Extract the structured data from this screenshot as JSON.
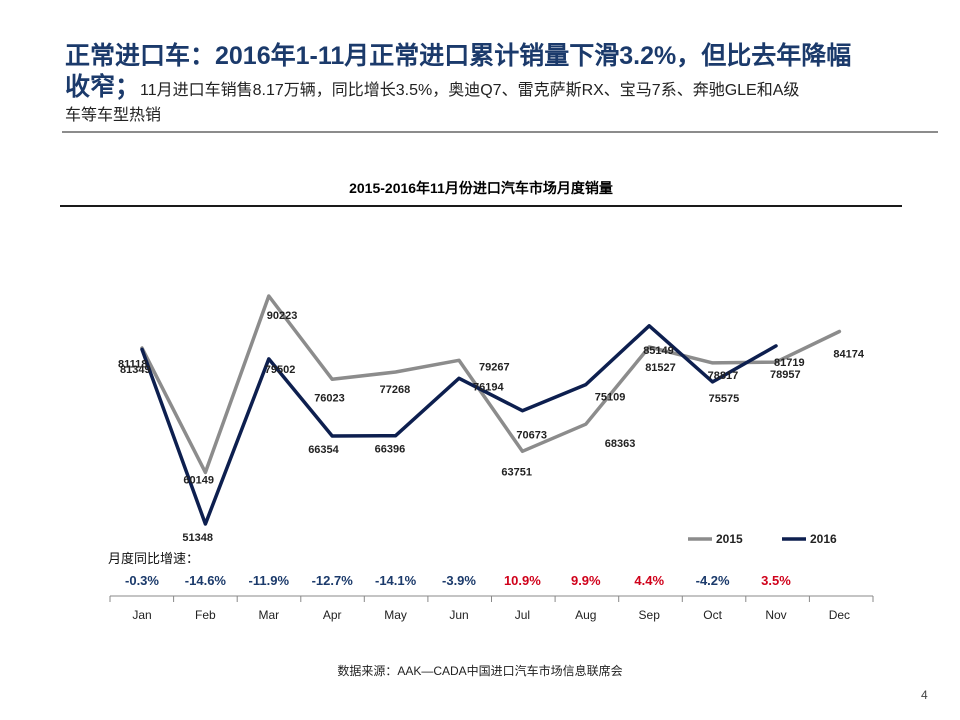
{
  "title": {
    "main": "正常进口车：2016年1-11月正常进口累计销量下滑3.2%，但比去年降幅",
    "lead": "收窄；",
    "sub_line1": "11月进口车销售8.17万辆，同比增长3.5%，奥迪Q7、雷克萨斯RX、宝马7系、奔驰GLE和A级",
    "sub_line2": "车等车型热销"
  },
  "yoy_caption": "月度同比增速：",
  "footnote": "数据来源：AAK—CADA中国进口汽车市场信息联席会",
  "page_number": "4",
  "chart_data": {
    "type": "line",
    "title": "2015-2016年11月份进口汽车市场月度销量",
    "xlabel": "",
    "ylabel": "",
    "categories": [
      "Jan",
      "Feb",
      "Mar",
      "Apr",
      "May",
      "Jun",
      "Jul",
      "Aug",
      "Sep",
      "Oct",
      "Nov",
      "Dec"
    ],
    "ylim": [
      45000,
      95000
    ],
    "grid": false,
    "legend_position": "bottom-right",
    "series": [
      {
        "name": "2015",
        "color": "#8c8c8c",
        "values": [
          81349,
          60149,
          90223,
          76023,
          77268,
          79267,
          63751,
          68363,
          81527,
          78817,
          78957,
          84174
        ]
      },
      {
        "name": "2016",
        "color": "#0d1f4f",
        "values": [
          81118,
          51348,
          79502,
          66354,
          66396,
          76194,
          70673,
          75109,
          85149,
          75575,
          81719,
          null
        ]
      }
    ],
    "yoy_growth": [
      "-0.3%",
      "-14.6%",
      "-11.9%",
      "-12.7%",
      "-14.1%",
      "-3.9%",
      "10.9%",
      "9.9%",
      "4.4%",
      "-4.2%",
      "3.5%"
    ],
    "yoy_colors": {
      "negative": "#1b3a6b",
      "positive": "#d0021b"
    }
  }
}
